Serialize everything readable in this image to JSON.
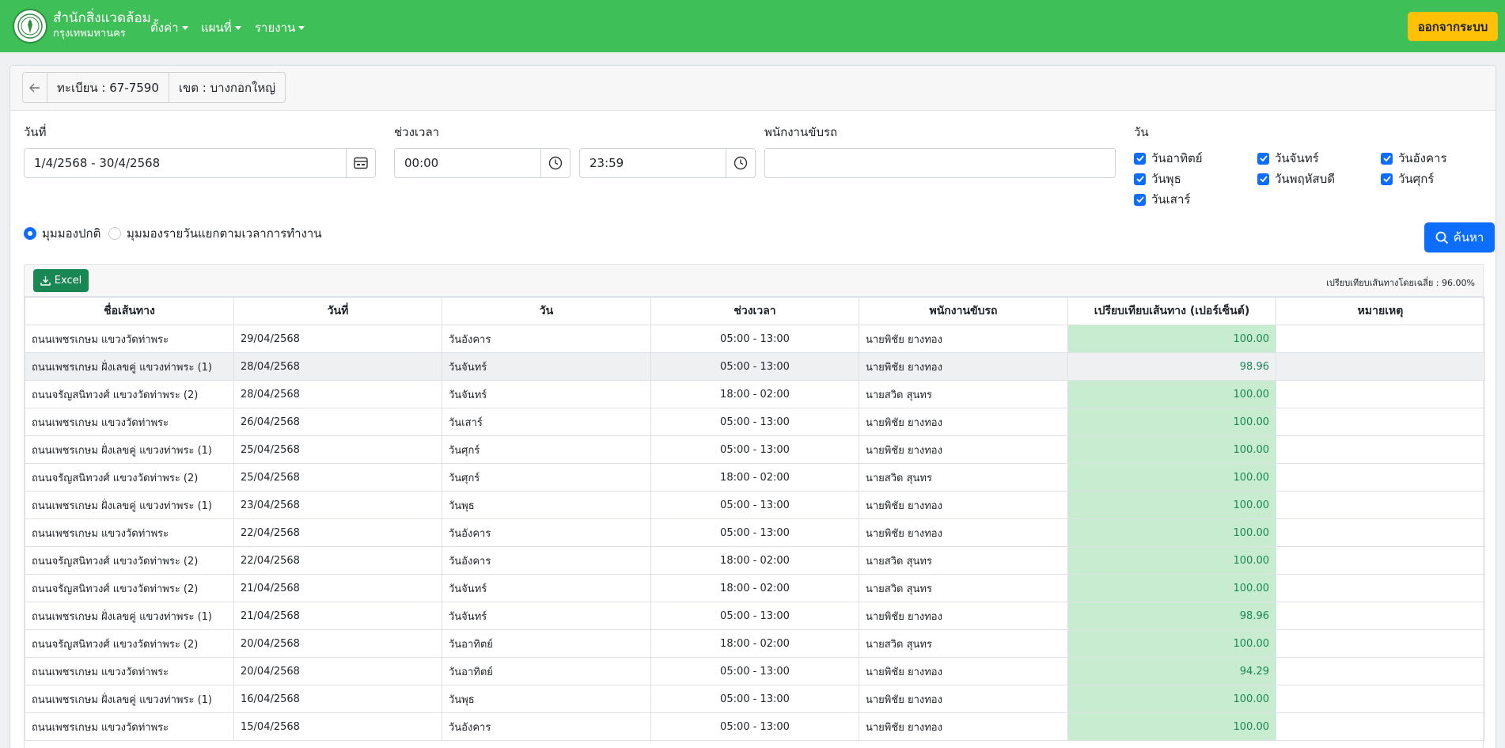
{
  "navbar": {
    "brand_line1": "สำนักสิ่งแวดล้อม",
    "brand_line2": "กรุงเทพมหานคร",
    "menus": [
      "ตั้งค่า",
      "แผนที่",
      "รายงาน"
    ],
    "logout_label": "ออกจากระบบ",
    "colors": {
      "bar": "#3fbf57",
      "logout": "#ffc107"
    }
  },
  "header": {
    "plate": "ทะเบียน : 67-7590",
    "district": "เขต : บางกอกใหญ่"
  },
  "filters": {
    "date_label": "วันที่",
    "date_value": "1/4/2568 - 30/4/2568",
    "time_label": "ช่วงเวลา",
    "time_start": "00:00",
    "time_end": "23:59",
    "driver_label": "พนักงานขับรถ",
    "driver_value": "",
    "days_label": "วัน",
    "days": [
      "วันอาทิตย์",
      "วันจันทร์",
      "วันอังคาร",
      "วันพุธ",
      "วันพฤหัสบดี",
      "วันศุกร์",
      "วันเสาร์"
    ],
    "view_normal": "มุมมองปกติ",
    "view_daily": "มุมมองรายวันแยกตามเวลาการทำงาน",
    "search_label": "ค้นหา"
  },
  "table": {
    "excel_label": "Excel",
    "average": "เปรียบเทียบเส้นทางโดยเฉลี่ย : 96.00%",
    "headers": [
      "ชื่อเส้นทาง",
      "วันที่",
      "วัน",
      "ช่วงเวลา",
      "พนักงานขับรถ",
      "เปรียบเทียบเส้นทาง (เปอร์เซ็นต์)",
      "หมายเหตุ"
    ],
    "rows": [
      [
        "ถนนเพชรเกษม แขวงวัดท่าพระ",
        "29/04/2568",
        "วันอังคาร",
        "05:00 - 13:00",
        "นายพิชัย ยางทอง",
        "100.00",
        ""
      ],
      [
        "ถนนเพชรเกษม ฝั่งเลขคู่ แขวงท่าพระ (1)",
        "28/04/2568",
        "วันจันทร์",
        "05:00 - 13:00",
        "นายพิชัย ยางทอง",
        "98.96",
        ""
      ],
      [
        "ถนนจรัญสนิทวงศ์ แขวงวัดท่าพระ (2)",
        "28/04/2568",
        "วันจันทร์",
        "18:00 - 02:00",
        "นายสวิด สุนทร",
        "100.00",
        ""
      ],
      [
        "ถนนเพชรเกษม แขวงวัดท่าพระ",
        "26/04/2568",
        "วันเสาร์",
        "05:00 - 13:00",
        "นายพิชัย ยางทอง",
        "100.00",
        ""
      ],
      [
        "ถนนเพชรเกษม ฝั่งเลขคู่ แขวงท่าพระ (1)",
        "25/04/2568",
        "วันศุกร์",
        "05:00 - 13:00",
        "นายพิชัย ยางทอง",
        "100.00",
        ""
      ],
      [
        "ถนนจรัญสนิทวงศ์ แขวงวัดท่าพระ (2)",
        "25/04/2568",
        "วันศุกร์",
        "18:00 - 02:00",
        "นายสวิด สุนทร",
        "100.00",
        ""
      ],
      [
        "ถนนเพชรเกษม ฝั่งเลขคู่ แขวงท่าพระ (1)",
        "23/04/2568",
        "วันพุธ",
        "05:00 - 13:00",
        "นายพิชัย ยางทอง",
        "100.00",
        ""
      ],
      [
        "ถนนเพชรเกษม แขวงวัดท่าพระ",
        "22/04/2568",
        "วันอังคาร",
        "05:00 - 13:00",
        "นายพิชัย ยางทอง",
        "100.00",
        ""
      ],
      [
        "ถนนจรัญสนิทวงศ์ แขวงวัดท่าพระ (2)",
        "22/04/2568",
        "วันอังคาร",
        "18:00 - 02:00",
        "นายสวิด สุนทร",
        "100.00",
        ""
      ],
      [
        "ถนนจรัญสนิทวงศ์ แขวงวัดท่าพระ (2)",
        "21/04/2568",
        "วันจันทร์",
        "18:00 - 02:00",
        "นายสวิด สุนทร",
        "100.00",
        ""
      ],
      [
        "ถนนเพชรเกษม ฝั่งเลขคู่ แขวงท่าพระ (1)",
        "21/04/2568",
        "วันจันทร์",
        "05:00 - 13:00",
        "นายพิชัย ยางทอง",
        "98.96",
        ""
      ],
      [
        "ถนนจรัญสนิทวงศ์ แขวงวัดท่าพระ (2)",
        "20/04/2568",
        "วันอาทิตย์",
        "18:00 - 02:00",
        "นายสวิด สุนทร",
        "100.00",
        ""
      ],
      [
        "ถนนเพชรเกษม แขวงวัดท่าพระ",
        "20/04/2568",
        "วันอาทิตย์",
        "05:00 - 13:00",
        "นายพิชัย ยางทอง",
        "94.29",
        ""
      ],
      [
        "ถนนเพชรเกษม ฝั่งเลขคู่ แขวงท่าพระ (1)",
        "16/04/2568",
        "วันพุธ",
        "05:00 - 13:00",
        "นายพิชัย ยางทอง",
        "100.00",
        ""
      ],
      [
        "ถนนเพชรเกษม แขวงวัดท่าพระ",
        "15/04/2568",
        "วันอังคาร",
        "05:00 - 13:00",
        "นายพิชัย ยางทอง",
        "100.00",
        ""
      ]
    ]
  }
}
